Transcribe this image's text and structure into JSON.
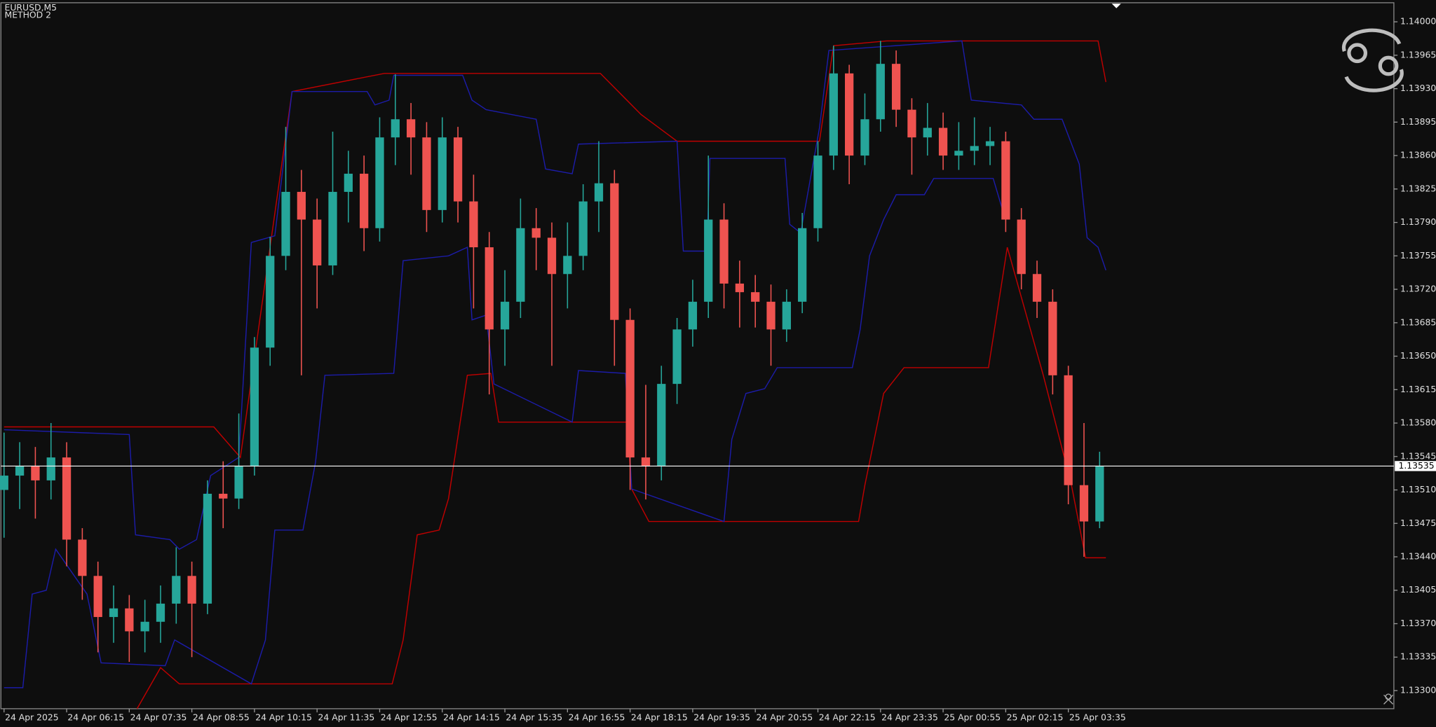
{
  "chart_data": {
    "type": "candlestick",
    "title": "EURUSD,M5",
    "subtitle": "METHOD 2",
    "colors": {
      "up": "#26a69a",
      "down": "#ef5350",
      "wick_up": "#26a69a",
      "wick_down": "#ef5350"
    },
    "xlim": [
      -0.2,
      88.8
    ],
    "xticks": [
      {
        "value": 0,
        "label": "24 Apr 2025"
      },
      {
        "value": 4,
        "label": "24 Apr 06:15"
      },
      {
        "value": 8,
        "label": "24 Apr 07:35"
      },
      {
        "value": 12,
        "label": "24 Apr 08:55"
      },
      {
        "value": 16,
        "label": "24 Apr 10:15"
      },
      {
        "value": 20,
        "label": "24 Apr 11:35"
      },
      {
        "value": 24,
        "label": "24 Apr 12:55"
      },
      {
        "value": 28,
        "label": "24 Apr 14:15"
      },
      {
        "value": 32,
        "label": "24 Apr 15:35"
      },
      {
        "value": 36,
        "label": "24 Apr 16:55"
      },
      {
        "value": 40,
        "label": "24 Apr 18:15"
      },
      {
        "value": 44,
        "label": "24 Apr 19:35"
      },
      {
        "value": 48,
        "label": "24 Apr 20:55"
      },
      {
        "value": 52,
        "label": "24 Apr 22:15"
      },
      {
        "value": 56,
        "label": "24 Apr 23:35"
      },
      {
        "value": 60,
        "label": "25 Apr 00:55"
      },
      {
        "value": 64,
        "label": "25 Apr 02:15"
      },
      {
        "value": 68,
        "label": "25 Apr 03:35"
      }
    ],
    "ylim": [
      1.13281,
      1.14019
    ],
    "yticks": [
      {
        "value": 1.133,
        "label": "1.13300"
      },
      1.13335,
      {
        "value": 1.1337,
        "label": "1.13370"
      },
      1.13405,
      {
        "value": 1.1344,
        "label": "1.13440"
      },
      1.13475,
      {
        "value": 1.1351,
        "label": "1.13510"
      },
      1.13545,
      {
        "value": 1.1358,
        "label": "1.13580"
      },
      1.13615,
      {
        "value": 1.1365,
        "label": "1.13650"
      },
      1.13685,
      {
        "value": 1.1372,
        "label": "1.13720"
      },
      1.13755,
      {
        "value": 1.1379,
        "label": "1.13790"
      },
      1.13825,
      {
        "value": 1.1386,
        "label": "1.13860"
      },
      1.13895,
      {
        "value": 1.1393,
        "label": "1.13930"
      },
      1.13965,
      {
        "value": 1.14,
        "label": "1.14000"
      }
    ],
    "current_price": 1.13535,
    "open": [
      1.1351,
      1.13525,
      1.13535,
      1.1352,
      1.13544,
      1.13458,
      1.1342,
      1.13377,
      1.13386,
      1.13362,
      1.13372,
      1.13391,
      1.1342,
      1.13391,
      1.13506,
      1.13501,
      1.13535,
      1.13659,
      1.13755,
      1.13822,
      1.13793,
      1.13745,
      1.13822,
      1.13841,
      1.13784,
      1.13879,
      1.13898,
      1.13879,
      1.13803,
      1.13879,
      1.13812,
      1.13764,
      1.13678,
      1.13707,
      1.13784,
      1.13774,
      1.13736,
      1.13755,
      1.13812,
      1.13831,
      1.13688,
      1.13544,
      1.13535,
      1.13621,
      1.13678,
      1.13707,
      1.13793,
      1.13726,
      1.13717,
      1.13707,
      1.13678,
      1.13707,
      1.13784,
      1.1386,
      1.13946,
      1.1386,
      1.13898,
      1.13956,
      1.13908,
      1.13879,
      1.13889,
      1.1386,
      1.13865,
      1.1387,
      1.13875,
      1.13793,
      1.13736,
      1.13707,
      1.1363,
      1.13515,
      1.13477
    ],
    "high": [
      1.1357,
      1.1356,
      1.13555,
      1.1358,
      1.1356,
      1.1347,
      1.13435,
      1.1341,
      1.134,
      1.13395,
      1.1341,
      1.1345,
      1.13435,
      1.1352,
      1.1354,
      1.1359,
      1.1367,
      1.13775,
      1.1389,
      1.13845,
      1.13815,
      1.13885,
      1.13865,
      1.1386,
      1.139,
      1.13945,
      1.13915,
      1.13895,
      1.139,
      1.1389,
      1.1384,
      1.1378,
      1.1374,
      1.13815,
      1.13805,
      1.1379,
      1.1379,
      1.1383,
      1.13875,
      1.13845,
      1.137,
      1.1362,
      1.1364,
      1.1369,
      1.1373,
      1.1386,
      1.1381,
      1.1375,
      1.13735,
      1.13725,
      1.1372,
      1.138,
      1.13875,
      1.13975,
      1.13955,
      1.13925,
      1.1398,
      1.1397,
      1.1392,
      1.13915,
      1.13905,
      1.13895,
      1.139,
      1.1389,
      1.13885,
      1.13805,
      1.1375,
      1.1372,
      1.1364,
      1.1358,
      1.1355
    ],
    "low": [
      1.1346,
      1.1349,
      1.1348,
      1.135,
      1.1343,
      1.13395,
      1.1334,
      1.1335,
      1.1333,
      1.1334,
      1.1335,
      1.1337,
      1.13335,
      1.1338,
      1.1347,
      1.1349,
      1.13525,
      1.1364,
      1.1374,
      1.1363,
      1.137,
      1.13735,
      1.1379,
      1.1376,
      1.1377,
      1.1385,
      1.1384,
      1.1378,
      1.1379,
      1.1379,
      1.137,
      1.1361,
      1.1364,
      1.1369,
      1.1374,
      1.1364,
      1.137,
      1.1374,
      1.1378,
      1.1364,
      1.1351,
      1.135,
      1.1352,
      1.136,
      1.1366,
      1.1369,
      1.137,
      1.1368,
      1.1368,
      1.1364,
      1.13665,
      1.13695,
      1.1377,
      1.13845,
      1.1383,
      1.1385,
      1.13885,
      1.1389,
      1.1384,
      1.1386,
      1.13845,
      1.13845,
      1.1385,
      1.1385,
      1.1378,
      1.1372,
      1.1369,
      1.1361,
      1.13495,
      1.1344,
      1.1347
    ],
    "close": [
      1.13525,
      1.13535,
      1.1352,
      1.13544,
      1.13458,
      1.1342,
      1.13377,
      1.13386,
      1.13362,
      1.13372,
      1.13391,
      1.1342,
      1.13391,
      1.13506,
      1.13501,
      1.13535,
      1.13659,
      1.13755,
      1.13822,
      1.13793,
      1.13745,
      1.13822,
      1.13841,
      1.13784,
      1.13879,
      1.13898,
      1.13879,
      1.13803,
      1.13879,
      1.13812,
      1.13764,
      1.13678,
      1.13707,
      1.13784,
      1.13774,
      1.13736,
      1.13755,
      1.13812,
      1.13831,
      1.13688,
      1.13544,
      1.13535,
      1.13621,
      1.13678,
      1.13707,
      1.13793,
      1.13726,
      1.13717,
      1.13707,
      1.13678,
      1.13707,
      1.13784,
      1.1386,
      1.13946,
      1.1386,
      1.13898,
      1.13956,
      1.13908,
      1.13879,
      1.13889,
      1.1386,
      1.13865,
      1.1387,
      1.13875,
      1.13793,
      1.13736,
      1.13707,
      1.1363,
      1.13515,
      1.13477,
      1.13535
    ],
    "lines": [
      {
        "color": "#c00000",
        "x": [
          0,
          13.4,
          15.1,
          18.4,
          24.3,
          38.1,
          40.7,
          43.0,
          52.1,
          53.0,
          56.4,
          69.9,
          70.4
        ],
        "values": [
          1.13576,
          1.13576,
          1.13544,
          1.13927,
          1.13946,
          1.13946,
          1.13903,
          1.13875,
          1.13875,
          1.13975,
          1.1398,
          1.1398,
          1.13937
        ]
      },
      {
        "color": "#c00000",
        "x": [
          8.5,
          10.0,
          11.2,
          24.8,
          25.5,
          26.4,
          27.8,
          28.4,
          29.6,
          31.1,
          31.6,
          39.8,
          40.1,
          41.2,
          54.6,
          55.0,
          56.2,
          57.5,
          62.9,
          64.1,
          66.4,
          68.2,
          69.1,
          70.4
        ],
        "values": [
          1.13281,
          1.13324,
          1.13307,
          1.13307,
          1.13353,
          1.13463,
          1.13468,
          1.13501,
          1.1363,
          1.13632,
          1.13581,
          1.13581,
          1.13511,
          1.13477,
          1.13477,
          1.13515,
          1.13611,
          1.13638,
          1.13638,
          1.13764,
          1.1363,
          1.13515,
          1.13439,
          1.13439
        ]
      },
      {
        "color": "#1c1ca8",
        "x": [
          0,
          8.0,
          8.4,
          10.6,
          11.2,
          12.3,
          13.2,
          15.0,
          15.8,
          17.3,
          18.4,
          23.2,
          23.7,
          24.6,
          24.9,
          29.3,
          29.9,
          30.8,
          34.0,
          34.6,
          36.3,
          36.7,
          43.0,
          43.4,
          44.9,
          45.1,
          49.9,
          50.2,
          50.9,
          52.1,
          52.7,
          61.2,
          61.8,
          65.0,
          65.8,
          67.6,
          68.7,
          69.2,
          69.9,
          70.4
        ],
        "values": [
          1.13573,
          1.13568,
          1.13463,
          1.13458,
          1.13448,
          1.13458,
          1.13525,
          1.13544,
          1.13769,
          1.13776,
          1.13927,
          1.13927,
          1.13913,
          1.13918,
          1.13944,
          1.13944,
          1.13918,
          1.13908,
          1.13898,
          1.13846,
          1.13841,
          1.13872,
          1.13875,
          1.1376,
          1.1376,
          1.13857,
          1.13857,
          1.13788,
          1.13779,
          1.13889,
          1.1397,
          1.1398,
          1.13918,
          1.13913,
          1.13898,
          1.13898,
          1.13851,
          1.13774,
          1.13764,
          1.1374
        ]
      },
      {
        "color": "#1c1ca8",
        "x": [
          0,
          1.2,
          1.8,
          2.7,
          3.3,
          5.3,
          6.2,
          10.3,
          10.9,
          15.8,
          16.7,
          17.3,
          19.1,
          19.9,
          20.5,
          24.9,
          25.5,
          28.4,
          29.6,
          29.9,
          30.8,
          31.3,
          36.3,
          36.7,
          39.7,
          40.1,
          46.0,
          46.5,
          47.4,
          48.6,
          49.4,
          54.2,
          54.7,
          55.3,
          56.2,
          57.0,
          58.8,
          59.4,
          63.2,
          63.8
        ],
        "values": [
          1.13303,
          1.13303,
          1.13401,
          1.13405,
          1.13448,
          1.13401,
          1.13329,
          1.13326,
          1.13353,
          1.13307,
          1.13353,
          1.13468,
          1.13468,
          1.13539,
          1.1363,
          1.13632,
          1.1375,
          1.13755,
          1.13764,
          1.13688,
          1.13693,
          1.13621,
          1.13581,
          1.13635,
          1.13632,
          1.13511,
          1.13477,
          1.13563,
          1.13611,
          1.13616,
          1.13638,
          1.13638,
          1.13678,
          1.13755,
          1.13793,
          1.13819,
          1.13819,
          1.13836,
          1.13836,
          1.13803
        ]
      }
    ]
  }
}
